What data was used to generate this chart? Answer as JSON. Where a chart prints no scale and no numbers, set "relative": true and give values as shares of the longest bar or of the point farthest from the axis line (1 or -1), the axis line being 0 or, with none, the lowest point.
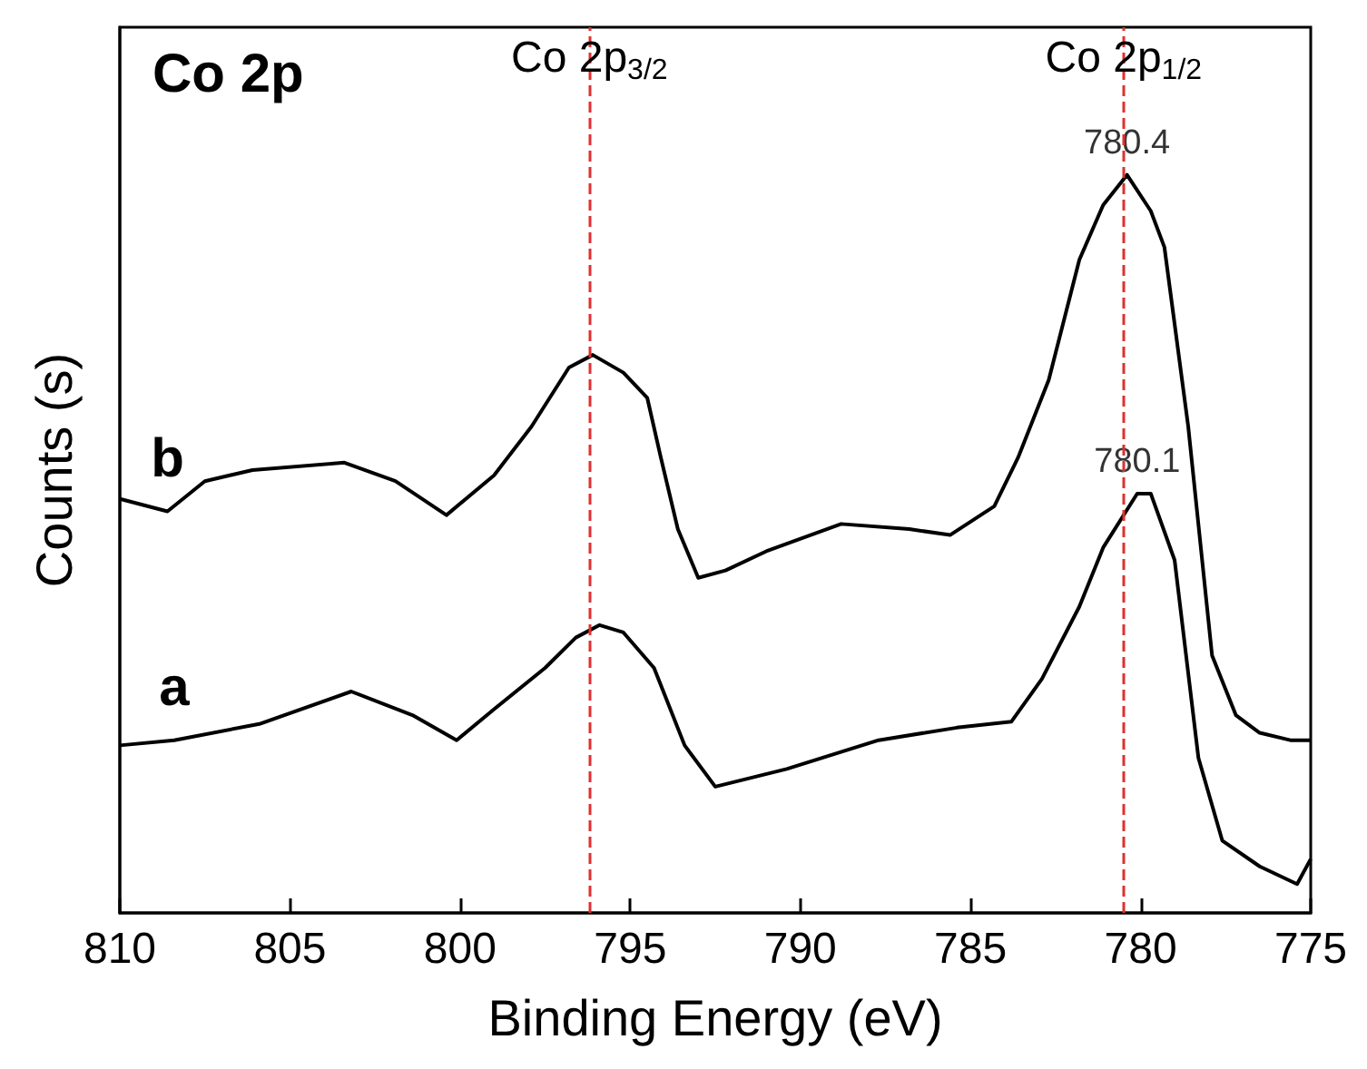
{
  "chart_data": {
    "type": "line",
    "xlabel": "Binding Energy (eV)",
    "ylabel": "Counts (s)",
    "relative": true,
    "xlim": [
      810,
      775
    ],
    "xticks": [
      810,
      805,
      800,
      795,
      790,
      785,
      780,
      775
    ],
    "grid": false,
    "legend": false,
    "marker": "none",
    "line_style": "solid",
    "series": [
      {
        "name": "b",
        "color": "#000000",
        "x": [
          810,
          808.6,
          807.5,
          806.1,
          803.4,
          801.9,
          800.4,
          799.0,
          797.9,
          796.8,
          796.1,
          795.2,
          794.5,
          794.1,
          793.6,
          793.0,
          792.2,
          791.0,
          788.8,
          786.8,
          785.6,
          784.3,
          783.6,
          782.7,
          781.8,
          781.1,
          780.4,
          779.7,
          779.3,
          778.6,
          777.9,
          777.2,
          776.5,
          775.6,
          775.0
        ],
        "values": [
          0.561,
          0.544,
          0.585,
          0.6,
          0.61,
          0.585,
          0.539,
          0.593,
          0.659,
          0.739,
          0.756,
          0.732,
          0.698,
          0.617,
          0.52,
          0.454,
          0.464,
          0.49,
          0.527,
          0.52,
          0.512,
          0.551,
          0.617,
          0.722,
          0.885,
          0.959,
          1.0,
          0.951,
          0.902,
          0.659,
          0.349,
          0.268,
          0.244,
          0.234,
          0.234
        ]
      },
      {
        "name": "a",
        "color": "#000000",
        "x": [
          810,
          808.4,
          805.9,
          803.2,
          801.4,
          800.1,
          799.0,
          797.5,
          796.6,
          795.9,
          795.2,
          794.3,
          793.4,
          792.5,
          790.4,
          787.7,
          785.4,
          783.8,
          782.9,
          781.8,
          781.1,
          780.1,
          779.7,
          779.0,
          778.3,
          777.6,
          776.5,
          775.4,
          775.0
        ],
        "values": [
          0.227,
          0.234,
          0.256,
          0.3,
          0.268,
          0.234,
          0.276,
          0.332,
          0.373,
          0.39,
          0.38,
          0.332,
          0.227,
          0.171,
          0.195,
          0.234,
          0.251,
          0.259,
          0.317,
          0.415,
          0.495,
          0.568,
          0.568,
          0.478,
          0.21,
          0.098,
          0.063,
          0.039,
          0.073
        ]
      }
    ],
    "ref_lines": [
      {
        "axis": "x",
        "value": 796.2,
        "label": "Co 2p$_{3/2}$",
        "color": "#e03030",
        "line_style": "dashed"
      },
      {
        "axis": "x",
        "value": 780.5,
        "label": "Co 2p$_{1/2}$",
        "color": "#e03030",
        "line_style": "dashed"
      }
    ],
    "annotations": [
      "Co 2p",
      {
        "text": "780.4",
        "x": 780.4,
        "y": 1.0
      },
      {
        "text": "780.1",
        "x": 780.1,
        "y": 0.568
      }
    ]
  }
}
